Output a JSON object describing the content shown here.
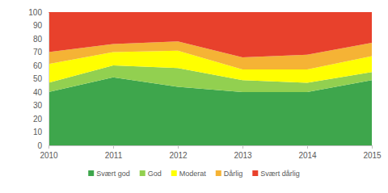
{
  "chart_data": {
    "type": "area",
    "stacked": true,
    "legend": "bottom",
    "x": [
      2010,
      2011,
      2012,
      2013,
      2014,
      2015
    ],
    "xlim": [
      2010,
      2015
    ],
    "xticks": [
      2010,
      2011,
      2012,
      2013,
      2014,
      2015
    ],
    "ylim": [
      0,
      100
    ],
    "yticks": [
      0,
      10,
      20,
      30,
      40,
      50,
      60,
      70,
      80,
      90,
      100
    ],
    "series": [
      {
        "name": "Svært god",
        "color": "#3ea64c",
        "values": [
          40,
          51,
          44,
          40,
          40,
          49
        ]
      },
      {
        "name": "God",
        "color": "#92d050",
        "values": [
          7,
          9,
          14,
          9,
          7,
          6
        ]
      },
      {
        "name": "Moderat",
        "color": "#ffff00",
        "values": [
          14,
          10,
          13,
          8,
          10,
          12
        ]
      },
      {
        "name": "Dårlig",
        "color": "#f5b335",
        "values": [
          9,
          6,
          7,
          9,
          11,
          10
        ]
      },
      {
        "name": "Svært dårlig",
        "color": "#e8412c",
        "values": [
          30,
          24,
          22,
          34,
          32,
          23
        ]
      }
    ]
  }
}
